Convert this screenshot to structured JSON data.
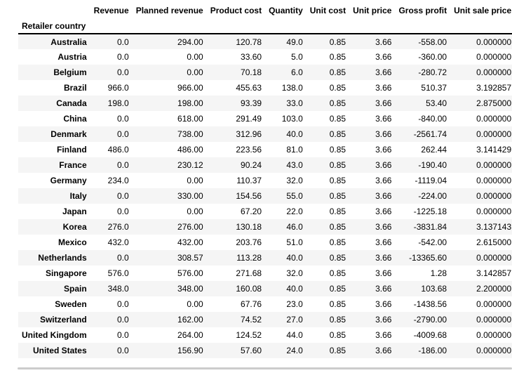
{
  "table": {
    "index_name": "Retailer country",
    "columns": [
      "Revenue",
      "Planned revenue",
      "Product cost",
      "Quantity",
      "Unit cost",
      "Unit price",
      "Gross profit",
      "Unit sale price"
    ],
    "rows": [
      {
        "label": "Australia",
        "values": [
          "0.0",
          "294.00",
          "120.78",
          "49.0",
          "0.85",
          "3.66",
          "-558.00",
          "0.000000"
        ]
      },
      {
        "label": "Austria",
        "values": [
          "0.0",
          "0.00",
          "33.60",
          "5.0",
          "0.85",
          "3.66",
          "-360.00",
          "0.000000"
        ]
      },
      {
        "label": "Belgium",
        "values": [
          "0.0",
          "0.00",
          "70.18",
          "6.0",
          "0.85",
          "3.66",
          "-280.72",
          "0.000000"
        ]
      },
      {
        "label": "Brazil",
        "values": [
          "966.0",
          "966.00",
          "455.63",
          "138.0",
          "0.85",
          "3.66",
          "510.37",
          "3.192857"
        ]
      },
      {
        "label": "Canada",
        "values": [
          "198.0",
          "198.00",
          "93.39",
          "33.0",
          "0.85",
          "3.66",
          "53.40",
          "2.875000"
        ]
      },
      {
        "label": "China",
        "values": [
          "0.0",
          "618.00",
          "291.49",
          "103.0",
          "0.85",
          "3.66",
          "-840.00",
          "0.000000"
        ]
      },
      {
        "label": "Denmark",
        "values": [
          "0.0",
          "738.00",
          "312.96",
          "40.0",
          "0.85",
          "3.66",
          "-2561.74",
          "0.000000"
        ]
      },
      {
        "label": "Finland",
        "values": [
          "486.0",
          "486.00",
          "223.56",
          "81.0",
          "0.85",
          "3.66",
          "262.44",
          "3.141429"
        ]
      },
      {
        "label": "France",
        "values": [
          "0.0",
          "230.12",
          "90.24",
          "43.0",
          "0.85",
          "3.66",
          "-190.40",
          "0.000000"
        ]
      },
      {
        "label": "Germany",
        "values": [
          "234.0",
          "0.00",
          "110.37",
          "32.0",
          "0.85",
          "3.66",
          "-1119.04",
          "0.000000"
        ]
      },
      {
        "label": "Italy",
        "values": [
          "0.0",
          "330.00",
          "154.56",
          "55.0",
          "0.85",
          "3.66",
          "-224.00",
          "0.000000"
        ]
      },
      {
        "label": "Japan",
        "values": [
          "0.0",
          "0.00",
          "67.20",
          "22.0",
          "0.85",
          "3.66",
          "-1225.18",
          "0.000000"
        ]
      },
      {
        "label": "Korea",
        "values": [
          "276.0",
          "276.00",
          "130.18",
          "46.0",
          "0.85",
          "3.66",
          "-3831.84",
          "3.137143"
        ]
      },
      {
        "label": "Mexico",
        "values": [
          "432.0",
          "432.00",
          "203.76",
          "51.0",
          "0.85",
          "3.66",
          "-542.00",
          "2.615000"
        ]
      },
      {
        "label": "Netherlands",
        "values": [
          "0.0",
          "308.57",
          "113.28",
          "40.0",
          "0.85",
          "3.66",
          "-13365.60",
          "0.000000"
        ]
      },
      {
        "label": "Singapore",
        "values": [
          "576.0",
          "576.00",
          "271.68",
          "32.0",
          "0.85",
          "3.66",
          "1.28",
          "3.142857"
        ]
      },
      {
        "label": "Spain",
        "values": [
          "348.0",
          "348.00",
          "160.08",
          "40.0",
          "0.85",
          "3.66",
          "103.68",
          "2.200000"
        ]
      },
      {
        "label": "Sweden",
        "values": [
          "0.0",
          "0.00",
          "67.76",
          "23.0",
          "0.85",
          "3.66",
          "-1438.56",
          "0.000000"
        ]
      },
      {
        "label": "Switzerland",
        "values": [
          "0.0",
          "162.00",
          "74.52",
          "27.0",
          "0.85",
          "3.66",
          "-2790.00",
          "0.000000"
        ]
      },
      {
        "label": "United Kingdom",
        "values": [
          "0.0",
          "264.00",
          "124.52",
          "44.0",
          "0.85",
          "3.66",
          "-4009.68",
          "0.000000"
        ]
      },
      {
        "label": "United States",
        "values": [
          "0.0",
          "156.90",
          "57.60",
          "24.0",
          "0.85",
          "3.66",
          "-186.00",
          "0.000000"
        ]
      }
    ]
  },
  "colors": {
    "row_stripe": "#f5f5f5",
    "header_border": "#000000",
    "scrollbar": "#cccccc",
    "text": "#000000"
  }
}
